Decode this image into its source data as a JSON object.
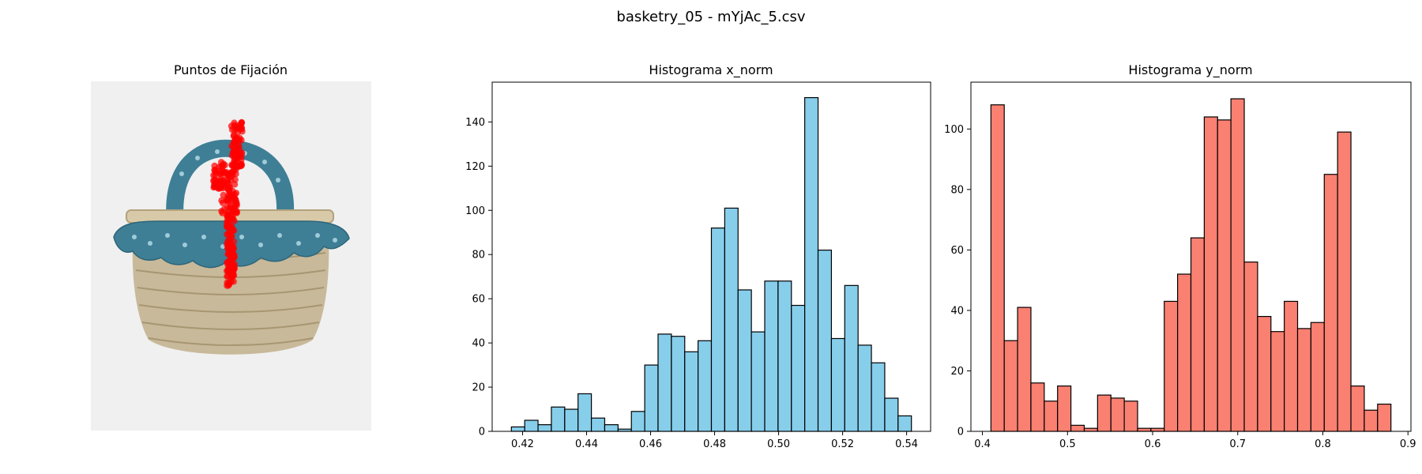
{
  "figure": {
    "title": "basketry_05 - mYjAc_5.csv"
  },
  "image_panel": {
    "title": "Puntos de Fijación",
    "subject": "woven-basket-photo",
    "point_color": "#ff0000",
    "background": "#f0f0f0"
  },
  "chart_data": [
    {
      "type": "bar",
      "title": "Histograma x_norm",
      "xlabel": "",
      "ylabel": "",
      "bins": 30,
      "x_range": [
        0.4165,
        0.5415
      ],
      "xlim": [
        0.4105,
        0.5475
      ],
      "ylim": [
        0,
        158
      ],
      "xticks": [
        0.42,
        0.44,
        0.46,
        0.48,
        0.5,
        0.52,
        0.54
      ],
      "xtick_labels": [
        "0.42",
        "0.44",
        "0.46",
        "0.48",
        "0.50",
        "0.52",
        "0.54"
      ],
      "yticks": [
        0,
        20,
        40,
        60,
        80,
        100,
        120,
        140
      ],
      "values": [
        2,
        5,
        3,
        11,
        10,
        17,
        6,
        3,
        1,
        9,
        30,
        44,
        43,
        36,
        41,
        92,
        101,
        64,
        45,
        68,
        68,
        57,
        151,
        82,
        42,
        66,
        39,
        31,
        15,
        7
      ],
      "color": "#87ceeb",
      "edge_color": "#000000"
    },
    {
      "type": "bar",
      "title": "Histograma y_norm",
      "xlabel": "",
      "ylabel": "",
      "bins": 30,
      "x_range": [
        0.41,
        0.88
      ],
      "xlim": [
        0.3865,
        0.9035
      ],
      "ylim": [
        0,
        115.5
      ],
      "xticks": [
        0.4,
        0.5,
        0.6,
        0.7,
        0.8,
        0.9
      ],
      "xtick_labels": [
        "0.4",
        "0.5",
        "0.6",
        "0.7",
        "0.8",
        "0.9"
      ],
      "yticks": [
        0,
        20,
        40,
        60,
        80,
        100
      ],
      "values": [
        108,
        30,
        41,
        16,
        10,
        15,
        2,
        1,
        12,
        11,
        10,
        1,
        1,
        43,
        52,
        64,
        104,
        103,
        110,
        56,
        38,
        33,
        43,
        34,
        36,
        85,
        99,
        15,
        7,
        9
      ],
      "color": "#fa8072",
      "edge_color": "#000000"
    }
  ]
}
